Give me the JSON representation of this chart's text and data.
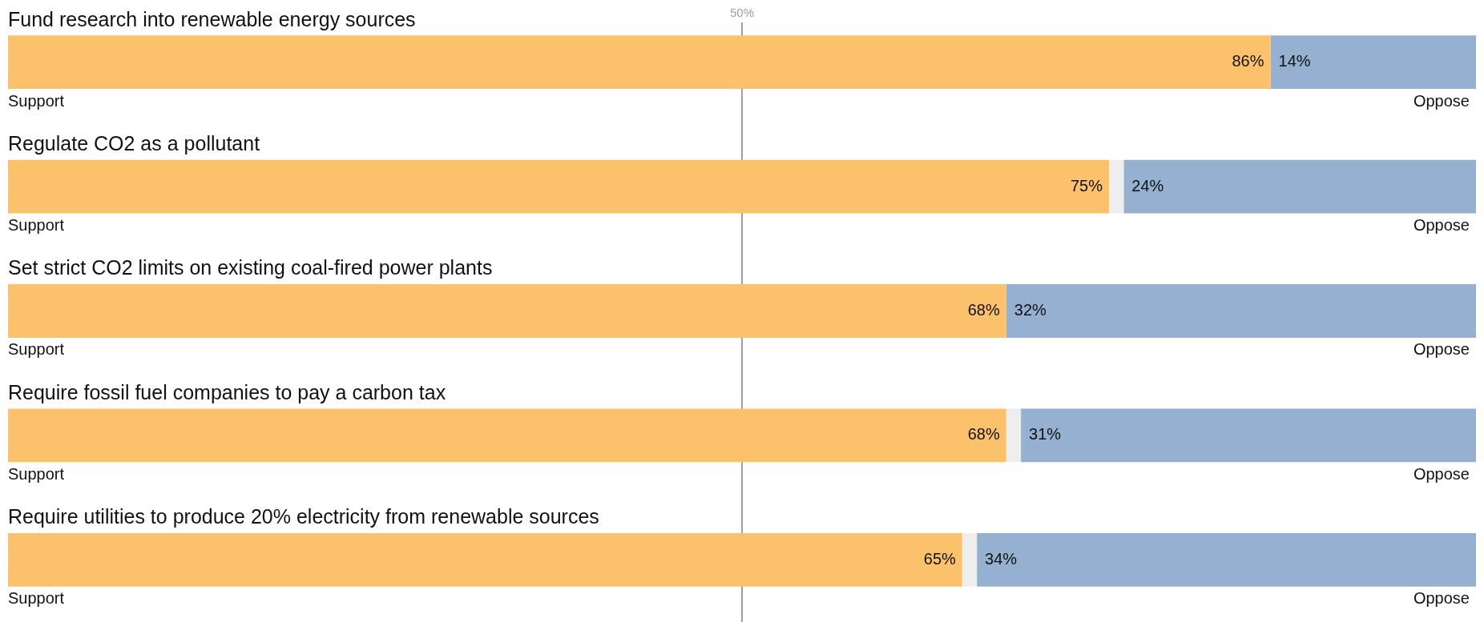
{
  "chart_data": {
    "type": "bar",
    "orientation": "horizontal",
    "stacked": true,
    "categories": [
      "Fund research into renewable energy sources",
      "Regulate CO2 as a pollutant",
      "Set strict CO2 limits on existing coal-fired power plants",
      "Require fossil fuel companies to pay a carbon tax",
      "Require utilities to produce 20% electricity from renewable sources"
    ],
    "xlim": [
      0,
      100
    ],
    "series": [
      {
        "name": "Support",
        "color": "#fbc26b",
        "values": [
          86,
          75,
          68,
          68,
          65
        ],
        "value_labels": [
          "86%",
          "75%",
          "68%",
          "68%",
          "65%"
        ]
      },
      {
        "color": "#eeeeee",
        "values": [
          0,
          1,
          0,
          1,
          1
        ]
      },
      {
        "name": "Oppose",
        "color": "#95b0d0",
        "values": [
          14,
          24,
          32,
          31,
          34
        ],
        "value_labels": [
          "14%",
          "24%",
          "32%",
          "31%",
          "34%"
        ]
      }
    ],
    "ref_lines": [
      {
        "axis": "x",
        "value": 50,
        "label": "50%",
        "color": "#9e9e9e"
      }
    ],
    "legend": false
  }
}
